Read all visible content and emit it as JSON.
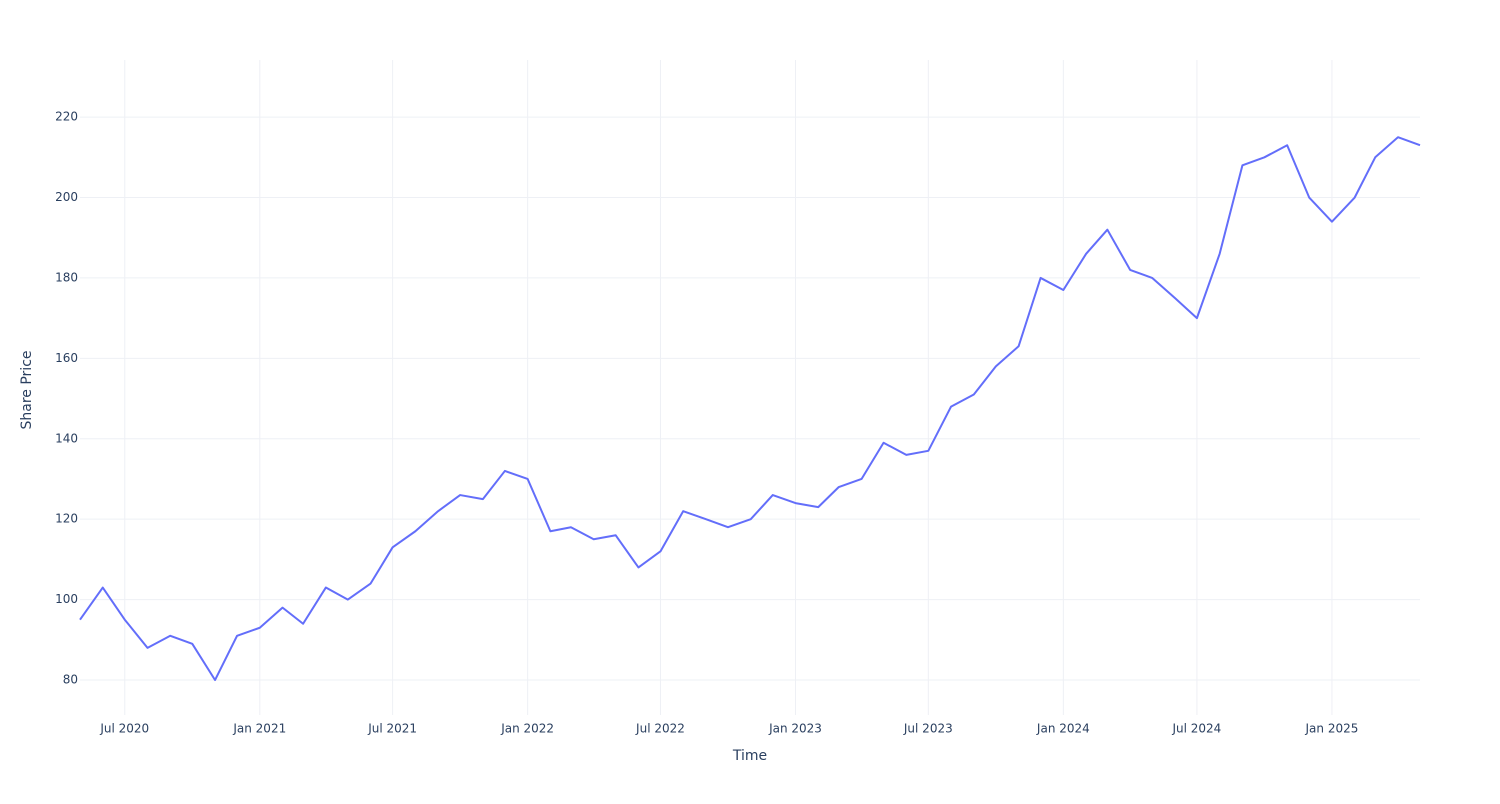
{
  "chart_data": {
    "type": "line",
    "x_label": "Time",
    "y_label": "Share Price",
    "x": [
      "2020-05",
      "2020-06",
      "2020-07",
      "2020-08",
      "2020-09",
      "2020-10",
      "2020-11",
      "2020-12",
      "2021-01",
      "2021-02",
      "2021-03",
      "2021-04",
      "2021-05",
      "2021-06",
      "2021-07",
      "2021-08",
      "2021-09",
      "2021-10",
      "2021-11",
      "2021-12",
      "2022-01",
      "2022-02",
      "2022-03",
      "2022-04",
      "2022-05",
      "2022-06",
      "2022-07",
      "2022-08",
      "2022-09",
      "2022-10",
      "2022-11",
      "2022-12",
      "2023-01",
      "2023-02",
      "2023-03",
      "2023-04",
      "2023-05",
      "2023-06",
      "2023-07",
      "2023-08",
      "2023-09",
      "2023-10",
      "2023-11",
      "2023-12",
      "2024-01",
      "2024-02",
      "2024-03",
      "2024-04",
      "2024-05",
      "2024-06",
      "2024-07",
      "2024-08",
      "2024-09",
      "2024-10",
      "2024-11",
      "2024-12",
      "2025-01",
      "2025-02",
      "2025-03",
      "2025-04",
      "2025-05"
    ],
    "series": [
      {
        "color": "#636efa",
        "values": [
          95,
          103,
          95,
          88,
          91,
          89,
          80,
          91,
          93,
          98,
          94,
          103,
          100,
          104,
          113,
          117,
          122,
          126,
          125,
          132,
          130,
          117,
          118,
          115,
          116,
          108,
          112,
          122,
          120,
          118,
          120,
          126,
          124,
          123,
          128,
          130,
          139,
          136,
          137,
          148,
          151,
          158,
          163,
          180,
          177,
          186,
          192,
          182,
          180,
          175,
          170,
          186,
          208,
          210,
          213,
          200,
          194,
          200,
          210,
          215,
          213
        ]
      }
    ],
    "xlim": [
      "2020-05",
      "2025-05"
    ],
    "xticks": [
      {
        "value": "2020-07",
        "label": "Jul 2020"
      },
      {
        "value": "2021-01",
        "label": "Jan 2021"
      },
      {
        "value": "2021-07",
        "label": "Jul 2021"
      },
      {
        "value": "2022-01",
        "label": "Jan 2022"
      },
      {
        "value": "2022-07",
        "label": "Jul 2022"
      },
      {
        "value": "2023-01",
        "label": "Jan 2023"
      },
      {
        "value": "2023-07",
        "label": "Jul 2023"
      },
      {
        "value": "2024-01",
        "label": "Jan 2024"
      },
      {
        "value": "2024-07",
        "label": "Jul 2024"
      },
      {
        "value": "2025-01",
        "label": "Jan 2025"
      }
    ],
    "ylim": [
      71.3,
      234.2
    ],
    "yticks": [
      80,
      100,
      120,
      140,
      160,
      180,
      200,
      220
    ],
    "grid": true
  }
}
